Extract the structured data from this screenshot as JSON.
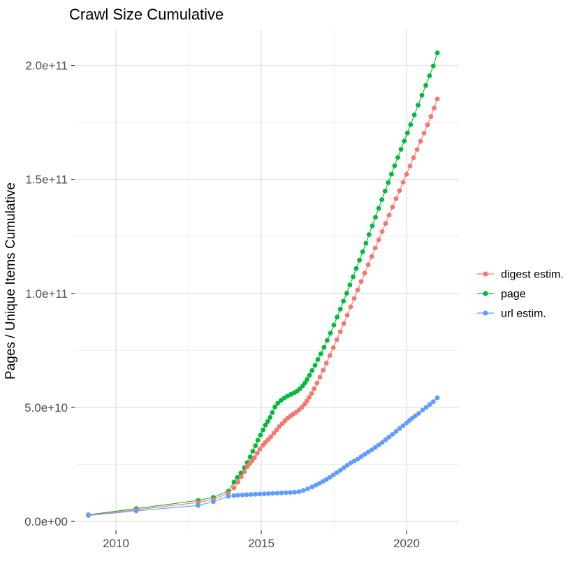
{
  "page": {
    "title": "Crawl Size Cumulative"
  },
  "chart_data": {
    "type": "line",
    "subtype": "scatter-line-cumulative",
    "title": "Crawl Size Cumulative",
    "xlabel": "",
    "ylabel": "Pages / Unique Items Cumulative",
    "grid": true,
    "legend_position": "right-middle",
    "x_range": [
      2008.6,
      2021.8
    ],
    "y_range_e9": [
      -5,
      216
    ],
    "x_ticks": [
      {
        "value": 2010,
        "label": "2010"
      },
      {
        "value": 2015,
        "label": "2015"
      },
      {
        "value": 2020,
        "label": "2020"
      }
    ],
    "x_minor_ticks": [
      2012.5,
      2017.5
    ],
    "y_ticks": [
      {
        "value_e9": 0,
        "label": "0.0e+00"
      },
      {
        "value_e9": 50,
        "label": "5.0e+10"
      },
      {
        "value_e9": 100,
        "label": "1.0e+11"
      },
      {
        "value_e9": 150,
        "label": "1.5e+11"
      },
      {
        "value_e9": 200,
        "label": "2.0e+11"
      }
    ],
    "y_minor_ticks_e9": [
      25,
      75,
      125,
      175
    ],
    "value_unit": "items, values stored in billions (1e9)",
    "series": [
      {
        "name": "digest estim.",
        "color": "#F8766D",
        "points": [
          [
            2009.05,
            2.8
          ],
          [
            2010.7,
            5.1
          ],
          [
            2012.83,
            8.3
          ],
          [
            2013.35,
            9.6
          ],
          [
            2013.87,
            12.3
          ],
          [
            2014.06,
            14.7
          ],
          [
            2014.2,
            17.2
          ],
          [
            2014.31,
            19.6
          ],
          [
            2014.42,
            21.8
          ],
          [
            2014.52,
            24.0
          ],
          [
            2014.6,
            25.3
          ],
          [
            2014.68,
            26.5
          ],
          [
            2014.77,
            28.0
          ],
          [
            2014.86,
            29.9
          ],
          [
            2014.95,
            31.6
          ],
          [
            2015.05,
            33.3
          ],
          [
            2015.14,
            34.6
          ],
          [
            2015.24,
            35.9
          ],
          [
            2015.33,
            37.1
          ],
          [
            2015.43,
            38.6
          ],
          [
            2015.53,
            40.1
          ],
          [
            2015.62,
            41.6
          ],
          [
            2015.72,
            42.9
          ],
          [
            2015.82,
            44.2
          ],
          [
            2015.91,
            45.3
          ],
          [
            2016.01,
            46.3
          ],
          [
            2016.1,
            47.1
          ],
          [
            2016.2,
            47.9
          ],
          [
            2016.3,
            48.9
          ],
          [
            2016.4,
            50.1
          ],
          [
            2016.49,
            51.4
          ],
          [
            2016.57,
            52.8
          ],
          [
            2016.65,
            54.4
          ],
          [
            2016.73,
            56.1
          ],
          [
            2016.82,
            58.2
          ],
          [
            2016.92,
            60.7
          ],
          [
            2017.02,
            63.3
          ],
          [
            2017.13,
            66.3
          ],
          [
            2017.24,
            69.4
          ],
          [
            2017.36,
            72.8
          ],
          [
            2017.48,
            76.2
          ],
          [
            2017.6,
            79.7
          ],
          [
            2017.72,
            83.2
          ],
          [
            2017.84,
            86.8
          ],
          [
            2017.96,
            90.4
          ],
          [
            2018.08,
            94.1
          ],
          [
            2018.2,
            97.8
          ],
          [
            2018.32,
            101.5
          ],
          [
            2018.44,
            105.2
          ],
          [
            2018.56,
            108.9
          ],
          [
            2018.68,
            112.6
          ],
          [
            2018.8,
            116.2
          ],
          [
            2018.92,
            119.9
          ],
          [
            2019.04,
            123.5
          ],
          [
            2019.16,
            127.1
          ],
          [
            2019.28,
            130.7
          ],
          [
            2019.4,
            134.3
          ],
          [
            2019.52,
            137.9
          ],
          [
            2019.64,
            141.5
          ],
          [
            2019.76,
            145.1
          ],
          [
            2019.88,
            148.7
          ],
          [
            2020.0,
            152.3
          ],
          [
            2020.12,
            155.9
          ],
          [
            2020.24,
            159.5
          ],
          [
            2020.36,
            163.1
          ],
          [
            2020.48,
            166.7
          ],
          [
            2020.6,
            170.3
          ],
          [
            2020.72,
            173.9
          ],
          [
            2020.84,
            177.6
          ],
          [
            2020.95,
            181.3
          ],
          [
            2021.06,
            185.3
          ]
        ]
      },
      {
        "name": "page",
        "color": "#00BA38",
        "points": [
          [
            2009.05,
            2.9
          ],
          [
            2010.7,
            5.6
          ],
          [
            2012.83,
            9.2
          ],
          [
            2013.35,
            10.5
          ],
          [
            2013.87,
            13.3
          ],
          [
            2014.06,
            17.2
          ],
          [
            2014.18,
            19.3
          ],
          [
            2014.3,
            21.2
          ],
          [
            2014.42,
            23.6
          ],
          [
            2014.52,
            25.8
          ],
          [
            2014.62,
            28.3
          ],
          [
            2014.71,
            30.8
          ],
          [
            2014.8,
            33.2
          ],
          [
            2014.88,
            35.6
          ],
          [
            2014.97,
            37.9
          ],
          [
            2015.06,
            40.1
          ],
          [
            2015.14,
            42.2
          ],
          [
            2015.22,
            43.8
          ],
          [
            2015.3,
            45.6
          ],
          [
            2015.38,
            47.7
          ],
          [
            2015.47,
            50.2
          ],
          [
            2015.57,
            51.8
          ],
          [
            2015.68,
            53.1
          ],
          [
            2015.79,
            54.1
          ],
          [
            2015.9,
            54.9
          ],
          [
            2016.02,
            55.7
          ],
          [
            2016.13,
            56.4
          ],
          [
            2016.23,
            57.1
          ],
          [
            2016.33,
            58.2
          ],
          [
            2016.43,
            59.5
          ],
          [
            2016.51,
            60.8
          ],
          [
            2016.58,
            62.3
          ],
          [
            2016.66,
            64.1
          ],
          [
            2016.75,
            66.2
          ],
          [
            2016.85,
            68.5
          ],
          [
            2016.95,
            71.0
          ],
          [
            2017.05,
            73.5
          ],
          [
            2017.16,
            76.4
          ],
          [
            2017.27,
            79.4
          ],
          [
            2017.38,
            82.6
          ],
          [
            2017.5,
            86.1
          ],
          [
            2017.61,
            89.6
          ],
          [
            2017.72,
            93.1
          ],
          [
            2017.83,
            96.6
          ],
          [
            2017.94,
            100.1
          ],
          [
            2018.05,
            103.7
          ],
          [
            2018.16,
            107.3
          ],
          [
            2018.27,
            110.9
          ],
          [
            2018.38,
            114.6
          ],
          [
            2018.49,
            118.3
          ],
          [
            2018.6,
            122.0
          ],
          [
            2018.71,
            125.8
          ],
          [
            2018.82,
            129.6
          ],
          [
            2018.93,
            133.4
          ],
          [
            2019.04,
            137.3
          ],
          [
            2019.15,
            141.1
          ],
          [
            2019.26,
            144.9
          ],
          [
            2019.37,
            148.6
          ],
          [
            2019.48,
            152.3
          ],
          [
            2019.59,
            156.0
          ],
          [
            2019.7,
            159.6
          ],
          [
            2019.81,
            163.2
          ],
          [
            2019.92,
            166.8
          ],
          [
            2020.03,
            170.4
          ],
          [
            2020.14,
            174.0
          ],
          [
            2020.27,
            178.3
          ],
          [
            2020.4,
            182.6
          ],
          [
            2020.53,
            186.9
          ],
          [
            2020.66,
            191.2
          ],
          [
            2020.79,
            195.5
          ],
          [
            2020.92,
            199.8
          ],
          [
            2021.06,
            205.5
          ]
        ]
      },
      {
        "name": "url estim.",
        "color": "#619CFF",
        "points": [
          [
            2009.05,
            2.6
          ],
          [
            2010.7,
            4.6
          ],
          [
            2012.83,
            7.0
          ],
          [
            2013.35,
            8.6
          ],
          [
            2013.87,
            11.0
          ],
          [
            2014.06,
            11.3
          ],
          [
            2014.2,
            11.5
          ],
          [
            2014.35,
            11.6
          ],
          [
            2014.5,
            11.7
          ],
          [
            2014.65,
            11.8
          ],
          [
            2014.8,
            11.9
          ],
          [
            2014.95,
            12.0
          ],
          [
            2015.1,
            12.1
          ],
          [
            2015.25,
            12.2
          ],
          [
            2015.4,
            12.3
          ],
          [
            2015.55,
            12.4
          ],
          [
            2015.7,
            12.5
          ],
          [
            2015.85,
            12.6
          ],
          [
            2016.0,
            12.7
          ],
          [
            2016.15,
            12.8
          ],
          [
            2016.3,
            13.0
          ],
          [
            2016.45,
            13.6
          ],
          [
            2016.6,
            14.3
          ],
          [
            2016.75,
            15.1
          ],
          [
            2016.88,
            15.9
          ],
          [
            2017.0,
            16.7
          ],
          [
            2017.12,
            17.5
          ],
          [
            2017.24,
            18.4
          ],
          [
            2017.36,
            19.3
          ],
          [
            2017.48,
            20.4
          ],
          [
            2017.6,
            21.4
          ],
          [
            2017.72,
            22.4
          ],
          [
            2017.84,
            23.5
          ],
          [
            2017.96,
            24.6
          ],
          [
            2018.08,
            25.7
          ],
          [
            2018.2,
            26.5
          ],
          [
            2018.32,
            27.3
          ],
          [
            2018.44,
            28.4
          ],
          [
            2018.56,
            29.4
          ],
          [
            2018.68,
            30.4
          ],
          [
            2018.8,
            31.4
          ],
          [
            2018.92,
            32.4
          ],
          [
            2019.04,
            33.5
          ],
          [
            2019.16,
            34.6
          ],
          [
            2019.28,
            35.8
          ],
          [
            2019.4,
            37.0
          ],
          [
            2019.52,
            38.2
          ],
          [
            2019.64,
            39.5
          ],
          [
            2019.76,
            40.8
          ],
          [
            2019.88,
            42.0
          ],
          [
            2020.0,
            43.2
          ],
          [
            2020.1,
            44.3
          ],
          [
            2020.2,
            45.3
          ],
          [
            2020.3,
            46.3
          ],
          [
            2020.42,
            47.4
          ],
          [
            2020.55,
            48.8
          ],
          [
            2020.68,
            50.1
          ],
          [
            2020.8,
            51.3
          ],
          [
            2020.92,
            52.5
          ],
          [
            2021.06,
            54.2
          ]
        ]
      }
    ]
  },
  "style": {
    "colors": {
      "digest_estim": "#F8766D",
      "page": "#00BA38",
      "url_estim": "#619CFF",
      "grid_major": "#e2e2e2",
      "grid_minor": "#efefef",
      "tick_mark": "#333333",
      "tick_text": "#4d4d4d",
      "background": "#ffffff"
    }
  }
}
